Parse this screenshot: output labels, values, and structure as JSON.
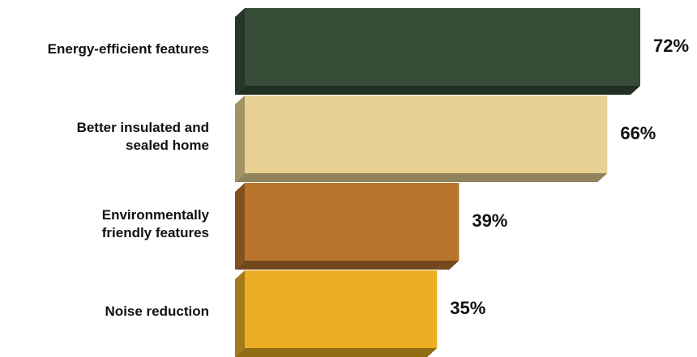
{
  "chart_data": {
    "type": "bar",
    "orientation": "horizontal",
    "categories": [
      "Energy-efficient features",
      "Better insulated and sealed home",
      "Environmentally friendly features",
      "Noise reduction"
    ],
    "category_lines": [
      [
        "Energy-efficient features"
      ],
      [
        "Better insulated and",
        "sealed home"
      ],
      [
        "Environmentally",
        "friendly features"
      ],
      [
        "Noise reduction"
      ]
    ],
    "values": [
      72,
      66,
      39,
      35
    ],
    "value_labels": [
      "72%",
      "66%",
      "39%",
      "35%"
    ],
    "unit": "%",
    "colors": [
      "#364d38",
      "#e8d192",
      "#b8752b",
      "#ebad22"
    ],
    "title": "",
    "xlabel": "",
    "ylabel": "",
    "xlim": [
      0,
      72
    ],
    "grid": false,
    "legend": "none",
    "style": "3d-bars"
  }
}
